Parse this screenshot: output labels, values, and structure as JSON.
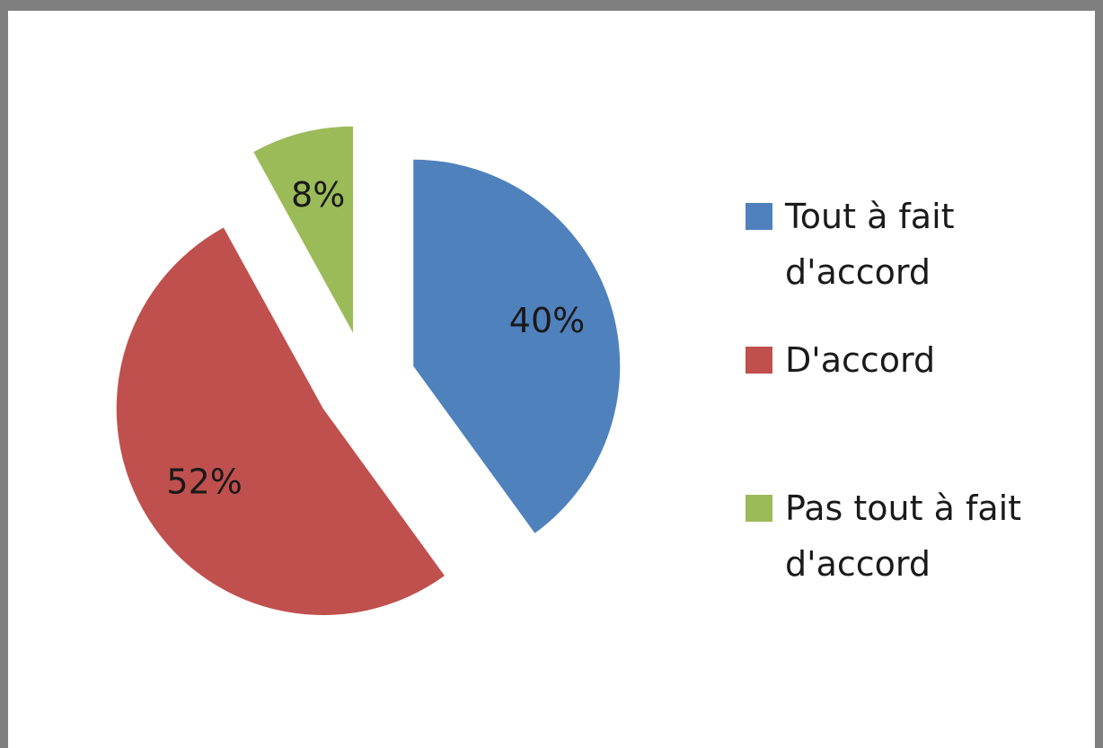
{
  "chart_data": {
    "type": "pie",
    "categories": [
      "Tout à fait d'accord",
      "D'accord",
      "Pas tout à fait d'accord"
    ],
    "values": [
      40,
      52,
      8
    ],
    "value_labels": [
      "40%",
      "52%",
      "8%"
    ],
    "colors": [
      "#4f81bd",
      "#c0504d",
      "#9bbb59"
    ],
    "exploded": true,
    "legend": "right"
  }
}
